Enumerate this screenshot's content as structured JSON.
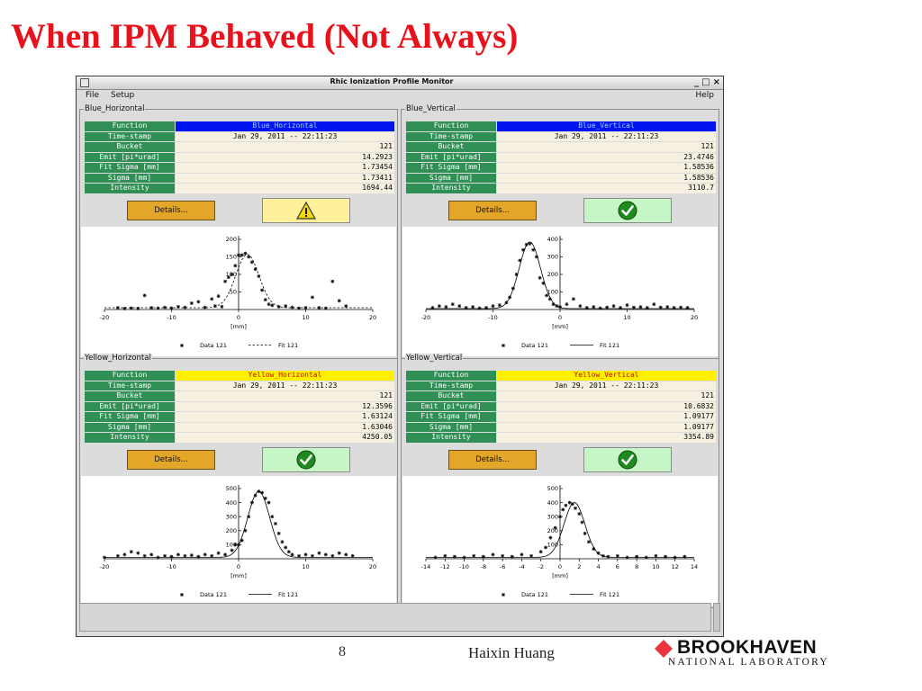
{
  "slide": {
    "title": "When IPM Behaved (Not Always)",
    "page_number": "8",
    "author": "Haixin Huang",
    "logo": {
      "name": "BROOKHAVEN",
      "subtitle": "NATIONAL LABORATORY"
    }
  },
  "window": {
    "title": "Rhic Ionization Profile Monitor",
    "controls": [
      "_",
      "□",
      "×"
    ],
    "menu": {
      "file": "File",
      "setup": "Setup",
      "help": "Help"
    }
  },
  "colors": {
    "label_bg": "#2f8f55",
    "blue_function": "#0014f0",
    "yellow_function": "#fff000",
    "details_button": "#e4a628",
    "warn_bg": "#fff19a",
    "ok_bg": "#c6f5c6",
    "title": "#e8121c"
  },
  "panels": [
    {
      "name": "Blue_Horizontal",
      "function_style": "blue",
      "rows": [
        {
          "label": "Function",
          "value": "Blue_Horizontal"
        },
        {
          "label": "Time-stamp",
          "value": "Jan 29, 2011 -- 22:11:23"
        },
        {
          "label": "Bucket",
          "value": "121"
        },
        {
          "label": "Emit [pi*urad]",
          "value": "14.2923"
        },
        {
          "label": "Fit Sigma [mm]",
          "value": "1.73454"
        },
        {
          "label": "Sigma [mm]",
          "value": "1.73411"
        },
        {
          "label": "Intensity",
          "value": "1694.44"
        }
      ],
      "details_label": "Details...",
      "status": "warning",
      "status_icon": "warning-icon"
    },
    {
      "name": "Blue_Vertical",
      "function_style": "blue",
      "rows": [
        {
          "label": "Function",
          "value": "Blue_Vertical"
        },
        {
          "label": "Time-stamp",
          "value": "Jan 29, 2011 -- 22:11:23"
        },
        {
          "label": "Bucket",
          "value": "121"
        },
        {
          "label": "Emit [pi*urad]",
          "value": "23.4746"
        },
        {
          "label": "Fit Sigma [mm]",
          "value": "1.58536"
        },
        {
          "label": "Sigma [mm]",
          "value": "1.58536"
        },
        {
          "label": "Intensity",
          "value": "3110.7"
        }
      ],
      "details_label": "Details...",
      "status": "ok",
      "status_icon": "check-icon"
    },
    {
      "name": "Yellow_Horizontal",
      "function_style": "yellow",
      "rows": [
        {
          "label": "Function",
          "value": "Yellow_Horizontal"
        },
        {
          "label": "Time-stamp",
          "value": "Jan 29, 2011 -- 22:11:23"
        },
        {
          "label": "Bucket",
          "value": "121"
        },
        {
          "label": "Emit [pi*urad]",
          "value": "12.3596"
        },
        {
          "label": "Fit Sigma [mm]",
          "value": "1.63124"
        },
        {
          "label": "Sigma [mm]",
          "value": "1.63046"
        },
        {
          "label": "Intensity",
          "value": "4250.05"
        }
      ],
      "details_label": "Details...",
      "status": "ok",
      "status_icon": "check-icon"
    },
    {
      "name": "Yellow_Vertical",
      "function_style": "yellow",
      "rows": [
        {
          "label": "Function",
          "value": "Yellow_Vertical"
        },
        {
          "label": "Time-stamp",
          "value": "Jan 29, 2011 -- 22:11:23"
        },
        {
          "label": "Bucket",
          "value": "121"
        },
        {
          "label": "Emit [pi*urad]",
          "value": "10.6832"
        },
        {
          "label": "Fit Sigma [mm]",
          "value": "1.09177"
        },
        {
          "label": "Sigma [mm]",
          "value": "1.09177"
        },
        {
          "label": "Intensity",
          "value": "3354.89"
        }
      ],
      "details_label": "Details...",
      "status": "ok",
      "status_icon": "check-icon"
    }
  ],
  "chart_data": [
    {
      "type": "scatter",
      "panel": "Blue_Horizontal",
      "xlim": [
        -20,
        20
      ],
      "ylim": [
        0,
        200
      ],
      "xticks": [
        "-20",
        "-10",
        "0",
        "10",
        "20"
      ],
      "yticks": [
        "50",
        "100",
        "150",
        "200"
      ],
      "xlabel": "[mm]",
      "legend": [
        "Data 121",
        "Fit 121"
      ],
      "fit_style": "dashed",
      "fit": {
        "amplitude": 152,
        "center": 1.3,
        "sigma": 1.73,
        "baseline": 5
      },
      "series": [
        {
          "name": "Data 121",
          "x": [
            -18,
            -17,
            -16,
            -15,
            -14,
            -13,
            -12,
            -11,
            -10,
            -9,
            -8,
            -7,
            -6,
            -5,
            -4,
            -3.5,
            -3,
            -2.5,
            -2,
            -1.5,
            -1,
            -0.5,
            0,
            0.5,
            1,
            1.5,
            2,
            2.5,
            3,
            3.5,
            4,
            4.5,
            5,
            6,
            7,
            8,
            9,
            10,
            11,
            12,
            13,
            14,
            15,
            16
          ],
          "y": [
            5,
            3,
            4,
            3,
            40,
            5,
            4,
            6,
            4,
            8,
            6,
            18,
            22,
            6,
            30,
            10,
            38,
            8,
            80,
            92,
            100,
            125,
            155,
            155,
            160,
            150,
            135,
            115,
            95,
            55,
            28,
            15,
            12,
            8,
            10,
            6,
            4,
            5,
            35,
            5,
            4,
            80,
            25,
            10
          ]
        }
      ]
    },
    {
      "type": "scatter",
      "panel": "Blue_Vertical",
      "xlim": [
        -20,
        20
      ],
      "ylim": [
        0,
        400
      ],
      "xticks": [
        "-20",
        "-10",
        "0",
        "10",
        "20"
      ],
      "yticks": [
        "100",
        "200",
        "300",
        "400"
      ],
      "xlabel": "[mm]",
      "legend": [
        "Data 121",
        "Fit 121"
      ],
      "fit_style": "solid",
      "fit": {
        "amplitude": 380,
        "center": -4.5,
        "sigma": 1.59,
        "baseline": 5
      },
      "series": [
        {
          "name": "Data 121",
          "x": [
            -19,
            -18,
            -17,
            -16,
            -15,
            -14,
            -13,
            -12,
            -11,
            -10,
            -9,
            -8,
            -7.5,
            -7,
            -6.5,
            -6,
            -5.5,
            -5,
            -4.5,
            -4,
            -3.5,
            -3,
            -2.5,
            -2,
            -1.5,
            -1,
            -0.5,
            0,
            1,
            2,
            3,
            4,
            5,
            6,
            7,
            8,
            9,
            10,
            11,
            12,
            13,
            14,
            15,
            16,
            17,
            18,
            19
          ],
          "y": [
            10,
            20,
            15,
            30,
            20,
            10,
            15,
            8,
            10,
            20,
            25,
            40,
            70,
            120,
            200,
            280,
            340,
            370,
            375,
            340,
            300,
            180,
            150,
            80,
            60,
            30,
            20,
            15,
            30,
            60,
            20,
            10,
            15,
            8,
            12,
            20,
            10,
            25,
            12,
            15,
            10,
            30,
            12,
            15,
            10,
            12,
            10
          ]
        }
      ]
    },
    {
      "type": "scatter",
      "panel": "Yellow_Horizontal",
      "xlim": [
        -20,
        20
      ],
      "ylim": [
        0,
        500
      ],
      "xticks": [
        "-20",
        "-10",
        "0",
        "10",
        "20"
      ],
      "yticks": [
        "100",
        "200",
        "300",
        "400",
        "500"
      ],
      "xlabel": "[mm]",
      "legend": [
        "Data 121",
        "Fit 121"
      ],
      "fit_style": "solid",
      "fit": {
        "amplitude": 470,
        "center": 3.0,
        "sigma": 1.63,
        "baseline": 10
      },
      "series": [
        {
          "name": "Data 121",
          "x": [
            -20,
            -18,
            -17,
            -16,
            -15,
            -14,
            -13,
            -12,
            -11,
            -10,
            -9,
            -8,
            -7,
            -6,
            -5,
            -4,
            -3,
            -2,
            -1,
            -0.5,
            0,
            0.5,
            1,
            1.5,
            2,
            2.5,
            3,
            3.5,
            4,
            4.5,
            5,
            5.5,
            6,
            6.5,
            7,
            7.5,
            8,
            9,
            10,
            11,
            12,
            13,
            14,
            15,
            16,
            17
          ],
          "y": [
            10,
            20,
            30,
            50,
            40,
            20,
            30,
            10,
            20,
            15,
            30,
            20,
            25,
            15,
            30,
            20,
            40,
            30,
            60,
            100,
            100,
            130,
            200,
            300,
            400,
            450,
            480,
            470,
            430,
            400,
            300,
            250,
            180,
            120,
            80,
            50,
            30,
            20,
            30,
            20,
            40,
            30,
            20,
            40,
            30,
            20
          ]
        }
      ]
    },
    {
      "type": "scatter",
      "panel": "Yellow_Vertical",
      "xlim": [
        -14,
        14
      ],
      "ylim": [
        0,
        500
      ],
      "xticks": [
        "-14",
        "-12",
        "-10",
        "-8",
        "-6",
        "-4",
        "-2",
        "0",
        "2",
        "4",
        "6",
        "8",
        "10",
        "12",
        "14"
      ],
      "yticks": [
        "100",
        "200",
        "300",
        "400",
        "500"
      ],
      "xlabel": "[mm]",
      "legend": [
        "Data 121",
        "Fit 121"
      ],
      "fit_style": "solid",
      "fit": {
        "amplitude": 390,
        "center": 1.5,
        "sigma": 1.09,
        "baseline": 10
      },
      "series": [
        {
          "name": "Data 121",
          "x": [
            -13,
            -12,
            -11,
            -10,
            -9,
            -8,
            -7,
            -6,
            -5,
            -4,
            -3,
            -2,
            -1.5,
            -1,
            -0.5,
            0,
            0.3,
            0.6,
            1,
            1.3,
            1.6,
            2,
            2.3,
            2.6,
            3,
            3.5,
            4,
            4.5,
            5,
            6,
            7,
            8,
            9,
            10,
            11,
            12,
            13
          ],
          "y": [
            10,
            20,
            15,
            10,
            20,
            15,
            30,
            20,
            15,
            30,
            20,
            50,
            80,
            150,
            220,
            300,
            350,
            380,
            400,
            390,
            360,
            320,
            260,
            180,
            120,
            70,
            40,
            20,
            15,
            20,
            10,
            15,
            10,
            20,
            15,
            10,
            15
          ]
        }
      ]
    }
  ]
}
